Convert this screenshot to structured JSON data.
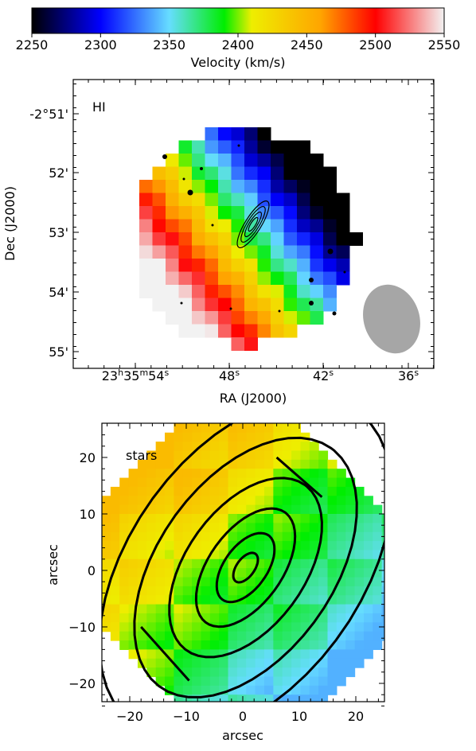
{
  "colorbar": {
    "label": "Velocity (km/s)",
    "ticks": [
      2250,
      2300,
      2350,
      2400,
      2450,
      2500,
      2550
    ],
    "range": [
      2250,
      2550
    ],
    "stops": [
      {
        "v": 2250,
        "c": "#000000"
      },
      {
        "v": 2300,
        "c": "#0000ff"
      },
      {
        "v": 2350,
        "c": "#66ddff"
      },
      {
        "v": 2390,
        "c": "#00ee00"
      },
      {
        "v": 2410,
        "c": "#eeee00"
      },
      {
        "v": 2460,
        "c": "#ffa500"
      },
      {
        "v": 2500,
        "c": "#ff0000"
      },
      {
        "v": 2550,
        "c": "#f2f2f2"
      }
    ]
  },
  "chart_data": [
    {
      "type": "heatmap",
      "panel": "HI",
      "title": "HI",
      "xlabel": "RA (J2000)",
      "ylabel": "Dec (J2000)",
      "xticks": [
        {
          "pre": "23",
          "h": "h",
          "m_val": "35",
          "m": "m",
          "s_val": "54",
          "s": "s"
        },
        {
          "s_val": "48",
          "s": "s"
        },
        {
          "s_val": "42",
          "s": "s"
        },
        {
          "s_val": "36",
          "s": "s"
        }
      ],
      "yticks": [
        "-2°51'",
        "52'",
        "53'",
        "54'",
        "55'"
      ],
      "velocity_field": "receding (~2500 km/s) to the east/south-east, approaching (~2250 km/s) to the north-west",
      "beam": "ellipse, lower right"
    },
    {
      "type": "heatmap",
      "panel": "stars",
      "title": "stars",
      "xlabel": "arcsec",
      "ylabel": "arcsec",
      "xlim": [
        -25,
        25
      ],
      "ylim": [
        -23,
        25
      ],
      "xticks": [
        -20,
        -10,
        0,
        10,
        20
      ],
      "yticks": [
        -20,
        -10,
        0,
        10,
        20
      ],
      "velocity_field": "~2350 km/s on the upper right, ~2440 km/s on the lower left"
    }
  ]
}
